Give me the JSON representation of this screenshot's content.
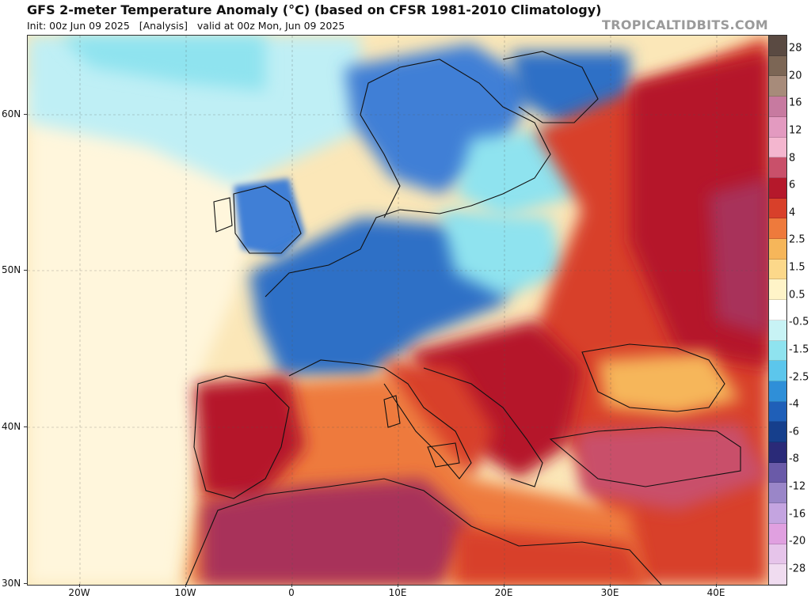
{
  "header": {
    "title": "GFS 2-meter Temperature Anomaly (°C) (based on CFSR 1981-2010 Climatology)",
    "subtitle": "Init: 00z Jun 09 2025   [Analysis]   valid at 00z Mon, Jun 09 2025",
    "brand": "TROPICALTIDBITS.COM"
  },
  "axes": {
    "x_ticks": [
      "20W",
      "10W",
      "0",
      "10E",
      "20E",
      "30E",
      "40E"
    ],
    "y_ticks": [
      "60N",
      "50N",
      "40N",
      "30N"
    ]
  },
  "colorbar": {
    "labels": [
      "28",
      "20",
      "16",
      "12",
      "8",
      "6",
      "4",
      "2.5",
      "1.5",
      "0.5",
      "-0.5",
      "-1.5",
      "-2.5",
      "-4",
      "-6",
      "-8",
      "-12",
      "-16",
      "-20",
      "-28"
    ],
    "colors": [
      "#5a4a42",
      "#7c6655",
      "#a78b7a",
      "#c77aa0",
      "#e39ac0",
      "#f4b6cf",
      "#c9506a",
      "#b5182b",
      "#d8402a",
      "#ee7a3c",
      "#f6b65a",
      "#fcd88a",
      "#fff4c8",
      "#ffffff",
      "#c8f3f5",
      "#8fe3ef",
      "#5cc6ec",
      "#2f8fd8",
      "#1f5fb8",
      "#163f8c",
      "#2a2a78",
      "#6a5aa8",
      "#9a86c8",
      "#c4a4e0",
      "#e0a0e0",
      "#e6c4ea",
      "#f0dcf0"
    ]
  },
  "colors": {
    "ocean_neutral": "#fbe7b8",
    "cold_blue": "#3f7fd6",
    "deep_blue": "#1f5fb8",
    "light_blue": "#8fe3ef",
    "warm_orange": "#ee7a3c",
    "warm_red": "#d8402a",
    "hot_darkred": "#b5182b",
    "very_hot": "#a8335a"
  }
}
